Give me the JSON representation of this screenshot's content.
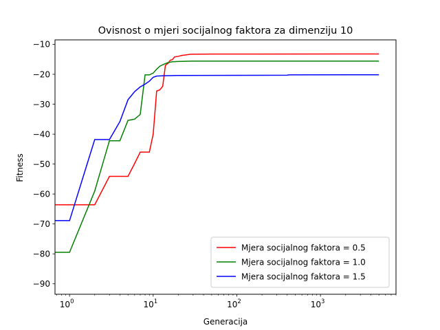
{
  "chart_data": {
    "type": "line",
    "title": "Ovisnost o mjeri socijalnog faktora za dimenziju 10",
    "xlabel": "Generacija",
    "ylabel": "Fitness",
    "xscale": "log",
    "xlim": [
      0.67,
      8000
    ],
    "ylim": [
      -93.5,
      -8.5
    ],
    "yticks": [
      -90,
      -80,
      -70,
      -60,
      -50,
      -40,
      -30,
      -20,
      -10
    ],
    "xticks": [
      {
        "value": 1,
        "base": "10",
        "exp": "0"
      },
      {
        "value": 10,
        "base": "10",
        "exp": "1"
      },
      {
        "value": 100,
        "base": "10",
        "exp": "2"
      },
      {
        "value": 1000,
        "base": "10",
        "exp": "3"
      }
    ],
    "grid": false,
    "legend": "lower-right",
    "series": [
      {
        "name": "Mjera socijalnog faktora = 0.5",
        "color": "#ff0000",
        "points": [
          [
            0.67,
            -63.6
          ],
          [
            1,
            -63.6
          ],
          [
            2,
            -63.6
          ],
          [
            3,
            -54.1
          ],
          [
            4,
            -54.1
          ],
          [
            5,
            -54.1
          ],
          [
            6,
            -49.8
          ],
          [
            7,
            -46
          ],
          [
            8,
            -46
          ],
          [
            9,
            -46
          ],
          [
            10,
            -40
          ],
          [
            11,
            -25.6
          ],
          [
            12,
            -25.2
          ],
          [
            13,
            -24
          ],
          [
            14,
            -17
          ],
          [
            15,
            -16.4
          ],
          [
            16,
            -15.3
          ],
          [
            17,
            -15.1
          ],
          [
            18,
            -14.2
          ],
          [
            20,
            -14
          ],
          [
            22,
            -13.7
          ],
          [
            25,
            -13.5
          ],
          [
            28,
            -13.3
          ],
          [
            50,
            -13.25
          ],
          [
            5000,
            -13.2
          ]
        ]
      },
      {
        "name": "Mjera socijalnog faktora = 1.0",
        "color": "#008000",
        "points": [
          [
            0.67,
            -79.5
          ],
          [
            1,
            -79.5
          ],
          [
            2,
            -59
          ],
          [
            3,
            -42.2
          ],
          [
            4,
            -42.2
          ],
          [
            5,
            -35.4
          ],
          [
            6,
            -35
          ],
          [
            7,
            -33.4
          ],
          [
            8,
            -20.2
          ],
          [
            9,
            -20.2
          ],
          [
            10,
            -19.6
          ],
          [
            11,
            -18.3
          ],
          [
            12,
            -17.3
          ],
          [
            13,
            -16.8
          ],
          [
            15,
            -16.1
          ],
          [
            17,
            -15.8
          ],
          [
            20,
            -15.7
          ],
          [
            30,
            -15.6
          ],
          [
            5000,
            -15.6
          ]
        ]
      },
      {
        "name": "Mjera socijalnog faktora = 1.5",
        "color": "#0000ff",
        "points": [
          [
            0.67,
            -68.9
          ],
          [
            1,
            -68.9
          ],
          [
            2,
            -41.8
          ],
          [
            3,
            -41.8
          ],
          [
            4,
            -35.8
          ],
          [
            5,
            -28.5
          ],
          [
            6,
            -25.8
          ],
          [
            7,
            -24.2
          ],
          [
            8,
            -23.3
          ],
          [
            9,
            -22.3
          ],
          [
            10,
            -21
          ],
          [
            11,
            -20.6
          ],
          [
            13,
            -20.5
          ],
          [
            20,
            -20.4
          ],
          [
            400,
            -20.3
          ],
          [
            420,
            -20.2
          ],
          [
            5000,
            -20.15
          ]
        ]
      }
    ]
  }
}
